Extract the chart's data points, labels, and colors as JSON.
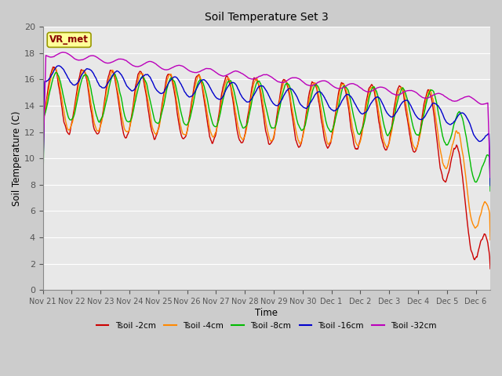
{
  "title": "Soil Temperature Set 3",
  "xlabel": "Time",
  "ylabel": "Soil Temperature (C)",
  "ylim": [
    0,
    20
  ],
  "yticks": [
    0,
    2,
    4,
    6,
    8,
    10,
    12,
    14,
    16,
    18,
    20
  ],
  "xtick_labels": [
    "Nov 21",
    "Nov 22",
    "Nov 23",
    "Nov 24",
    "Nov 25",
    "Nov 26",
    "Nov 27",
    "Nov 28",
    "Nov 29",
    "Nov 30",
    "Dec 1",
    "Dec 2",
    "Dec 3",
    "Dec 4",
    "Dec 5",
    "Dec 6"
  ],
  "series_colors": [
    "#cc0000",
    "#ff8800",
    "#00bb00",
    "#0000cc",
    "#bb00bb"
  ],
  "series_labels": [
    "Tsoil -2cm",
    "Tsoil -4cm",
    "Tsoil -8cm",
    "Tsoil -16cm",
    "Tsoil -32cm"
  ],
  "bg_color": "#e8e8e8",
  "grid_color": "#ffffff",
  "annotation_text": "VR_met",
  "annotation_box_color": "#ffff99",
  "annotation_border_color": "#999900",
  "n_days": 15.5,
  "pts_per_day": 48,
  "figwidth": 6.4,
  "figheight": 4.8,
  "dpi": 100
}
